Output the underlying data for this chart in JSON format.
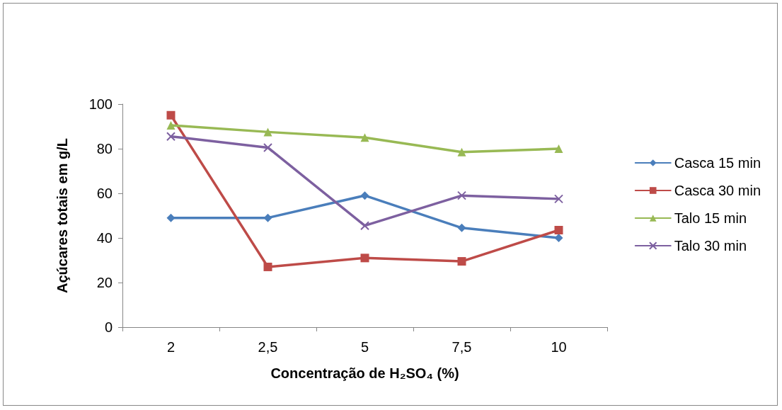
{
  "chart_data": {
    "type": "line",
    "xlabel": "Concentração de H₂SO₄ (%)",
    "ylabel": "Açúcares totais em g/L",
    "categories": [
      "2",
      "2,5",
      "5",
      "7,5",
      "10"
    ],
    "series": [
      {
        "name": "Casca 15 min",
        "color": "#4a7ebb",
        "marker": "diamond",
        "values": [
          49,
          49,
          59,
          44.5,
          40
        ]
      },
      {
        "name": "Casca 30 min",
        "color": "#be4b48",
        "marker": "square",
        "values": [
          95,
          27,
          31,
          29.5,
          43.5
        ]
      },
      {
        "name": "Talo 15 min",
        "color": "#98b954",
        "marker": "triangle",
        "values": [
          90.5,
          87.5,
          85,
          78.5,
          80
        ]
      },
      {
        "name": "Talo 30 min",
        "color": "#7d60a0",
        "marker": "cross",
        "values": [
          85.5,
          80.5,
          45.5,
          59,
          57.5
        ]
      }
    ],
    "ylim": [
      0,
      100
    ],
    "yticks": [
      0,
      20,
      40,
      60,
      80,
      100
    ],
    "grid": false,
    "legend": "right",
    "line_style": "solid"
  }
}
